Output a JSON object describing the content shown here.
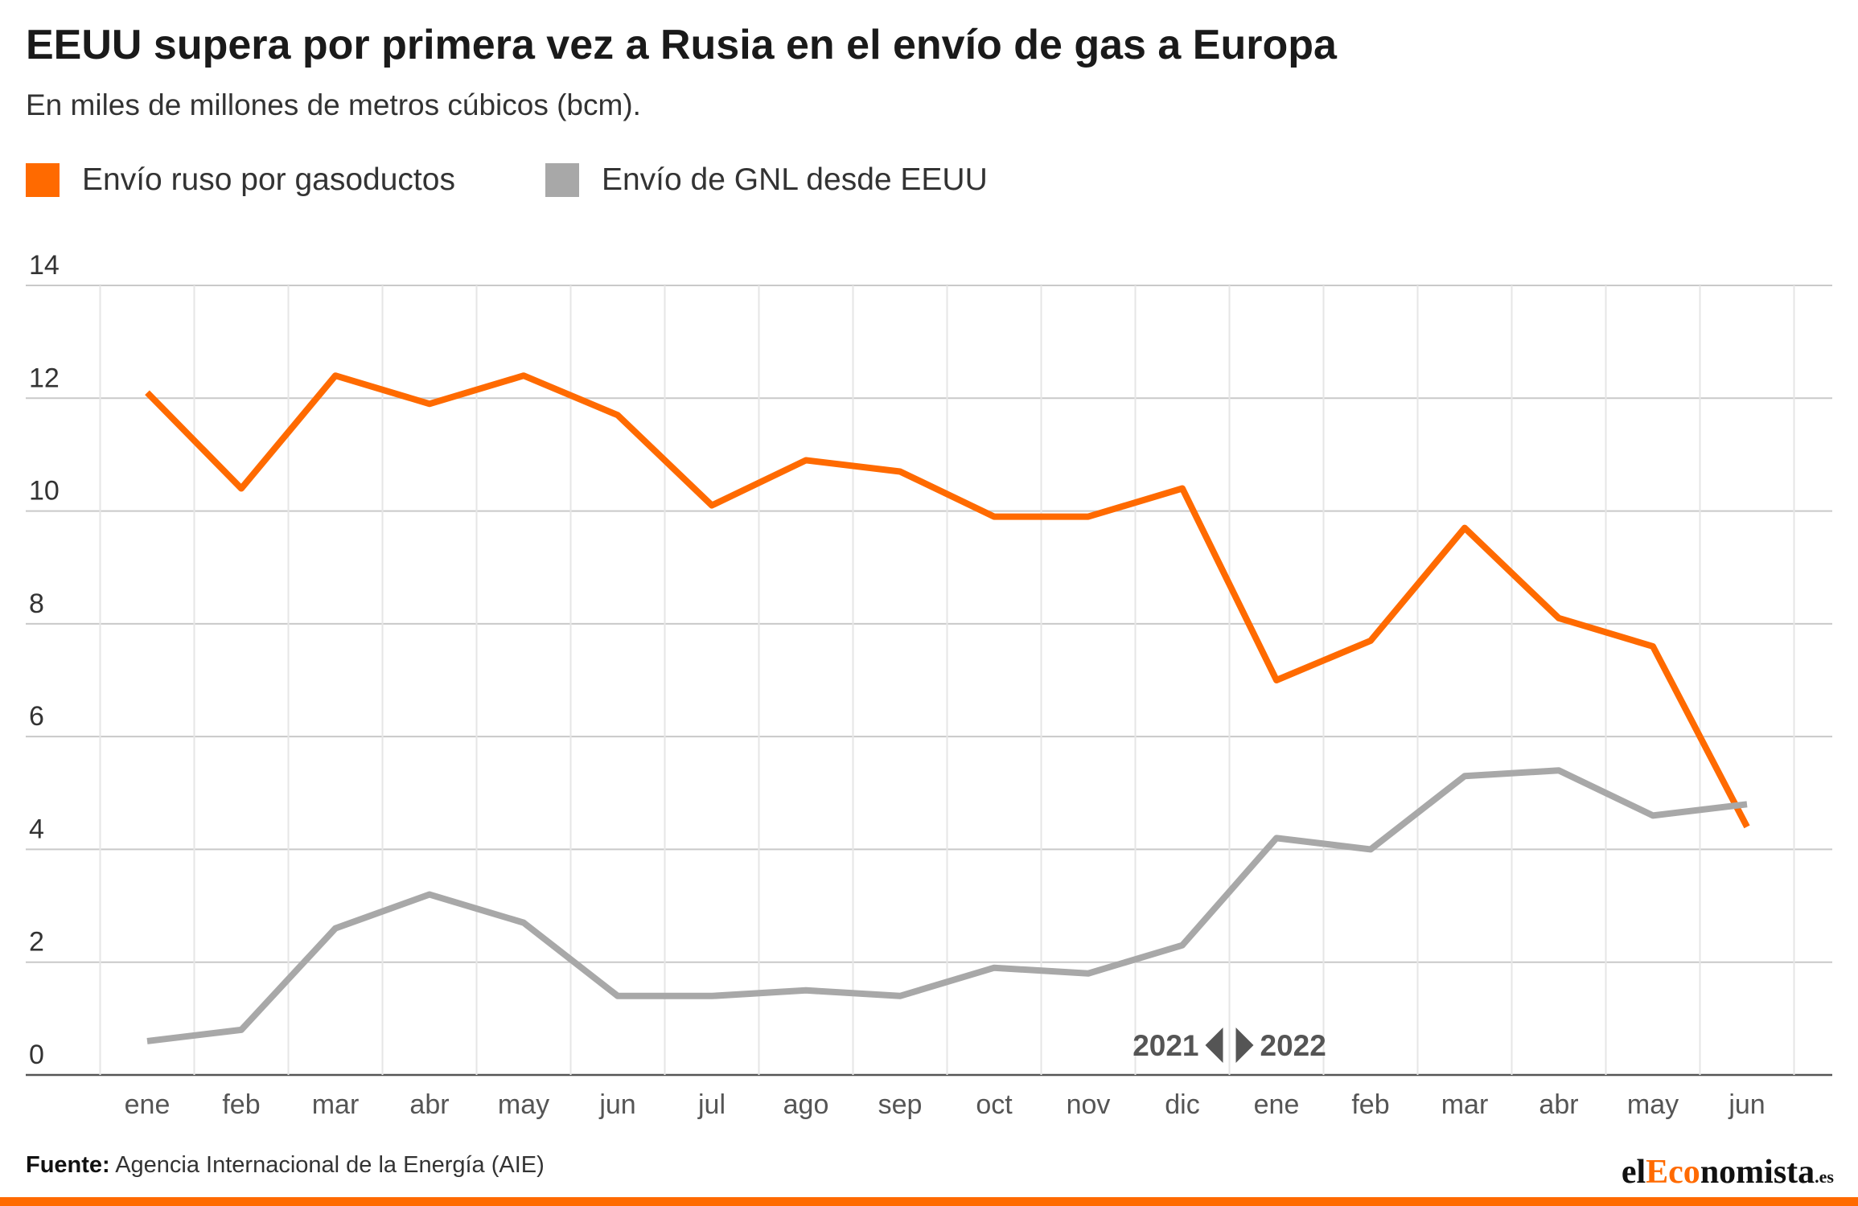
{
  "title": "EEUU supera por primera vez a Rusia en el envío de gas a Europa",
  "subtitle": "En miles de millones de metros cúbicos (bcm).",
  "legend": [
    {
      "label": "Envío ruso por gasoductos",
      "color": "#ff6a00"
    },
    {
      "label": "Envío de GNL desde EEUU",
      "color": "#a8a8a8"
    }
  ],
  "source": {
    "label": "Fuente:",
    "text": "Agencia Internacional de la Energía (AIE)"
  },
  "logo": {
    "part1": "el",
    "part2": "Eco",
    "part3": "nomista",
    "tld": ".es"
  },
  "colors": {
    "accent": "#ff6a00",
    "gray_series": "#a8a8a8",
    "grid": "#d9d9d9"
  },
  "chart_data": {
    "type": "line",
    "categories": [
      "ene",
      "feb",
      "mar",
      "abr",
      "may",
      "jun",
      "jul",
      "ago",
      "sep",
      "oct",
      "nov",
      "dic",
      "ene",
      "feb",
      "mar",
      "abr",
      "may",
      "jun"
    ],
    "year_markers": {
      "left": "2021",
      "right": "2022"
    },
    "series": [
      {
        "name": "Envío ruso por gasoductos",
        "color": "#ff6a00",
        "values": [
          12.1,
          10.4,
          12.4,
          11.9,
          12.4,
          11.7,
          10.1,
          10.9,
          10.7,
          9.9,
          9.9,
          10.4,
          7.0,
          7.7,
          9.7,
          8.1,
          7.6,
          4.4
        ]
      },
      {
        "name": "Envío de GNL desde EEUU",
        "color": "#a8a8a8",
        "values": [
          0.6,
          0.8,
          2.6,
          3.2,
          2.7,
          1.4,
          1.4,
          1.5,
          1.4,
          1.9,
          1.8,
          2.3,
          4.2,
          4.0,
          5.3,
          5.4,
          4.6,
          4.8
        ]
      }
    ],
    "ylim": [
      0,
      14
    ],
    "yticks": [
      0,
      2,
      4,
      6,
      8,
      10,
      12,
      14
    ],
    "grid": true,
    "legend_position": "top-left"
  }
}
